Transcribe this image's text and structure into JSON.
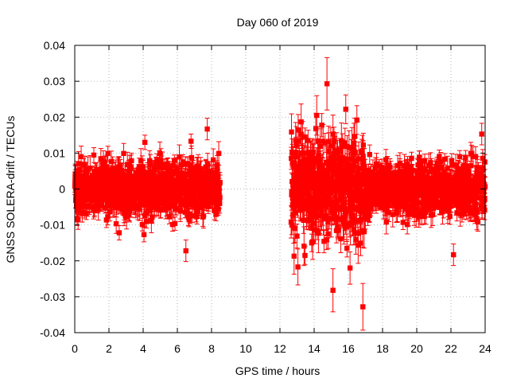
{
  "chart_data": {
    "type": "scatter",
    "title": "Day 060 of 2019",
    "xlabel": "GPS time / hours",
    "ylabel": "GNSS SOLERA-drift / TECUs",
    "xlim": [
      0,
      24
    ],
    "ylim": [
      -0.04,
      0.04
    ],
    "xticks": [
      0,
      2,
      4,
      6,
      8,
      10,
      12,
      14,
      16,
      18,
      20,
      22,
      24
    ],
    "yticks": [
      -0.04,
      -0.03,
      -0.02,
      -0.01,
      0,
      0.01,
      0.02,
      0.03,
      0.04
    ],
    "xtick_labels": [
      "0",
      "2",
      "4",
      "6",
      "8",
      "10",
      "12",
      "14",
      "16",
      "18",
      "20",
      "22",
      "24"
    ],
    "ytick_labels": [
      "-0.04",
      "-0.03",
      "-0.02",
      "-0.01",
      "0",
      "0.01",
      "0.02",
      "0.03",
      "0.04"
    ],
    "grid": true,
    "marker_color": "#ff0000",
    "series": [
      {
        "marker": "square",
        "error_bars": true,
        "segments": [
          {
            "x_start": 0.0,
            "x_end": 8.5,
            "spread": 0.0045,
            "err": 0.0025
          },
          {
            "x_start": 12.65,
            "x_end": 17.0,
            "spread": 0.0085,
            "err": 0.004
          },
          {
            "x_start": 17.0,
            "x_end": 24.0,
            "spread": 0.0045,
            "err": 0.0025
          }
        ],
        "points": [
          {
            "x": 14.75,
            "y": 0.0293,
            "err": 0.0073
          },
          {
            "x": 14.15,
            "y": 0.0205,
            "err": 0.0055
          },
          {
            "x": 15.85,
            "y": 0.0222,
            "err": 0.004
          },
          {
            "x": 16.5,
            "y": 0.0192,
            "err": 0.004
          },
          {
            "x": 7.75,
            "y": 0.0167,
            "err": 0.003
          },
          {
            "x": 23.8,
            "y": 0.0153,
            "err": 0.003
          },
          {
            "x": 4.1,
            "y": 0.013,
            "err": 0.002
          },
          {
            "x": 6.8,
            "y": 0.0133,
            "err": 0.002
          },
          {
            "x": 16.85,
            "y": -0.0328,
            "err": 0.0065
          },
          {
            "x": 15.1,
            "y": -0.0282,
            "err": 0.006
          },
          {
            "x": 13.05,
            "y": -0.0217,
            "err": 0.005
          },
          {
            "x": 16.1,
            "y": -0.022,
            "err": 0.0045
          },
          {
            "x": 22.15,
            "y": -0.0183,
            "err": 0.003
          },
          {
            "x": 6.5,
            "y": -0.0172,
            "err": 0.003
          },
          {
            "x": 2.6,
            "y": -0.0122,
            "err": 0.002
          },
          {
            "x": 4.05,
            "y": -0.0127,
            "err": 0.002
          },
          {
            "x": 19.2,
            "y": -0.0093,
            "err": 0.002
          }
        ]
      }
    ]
  }
}
